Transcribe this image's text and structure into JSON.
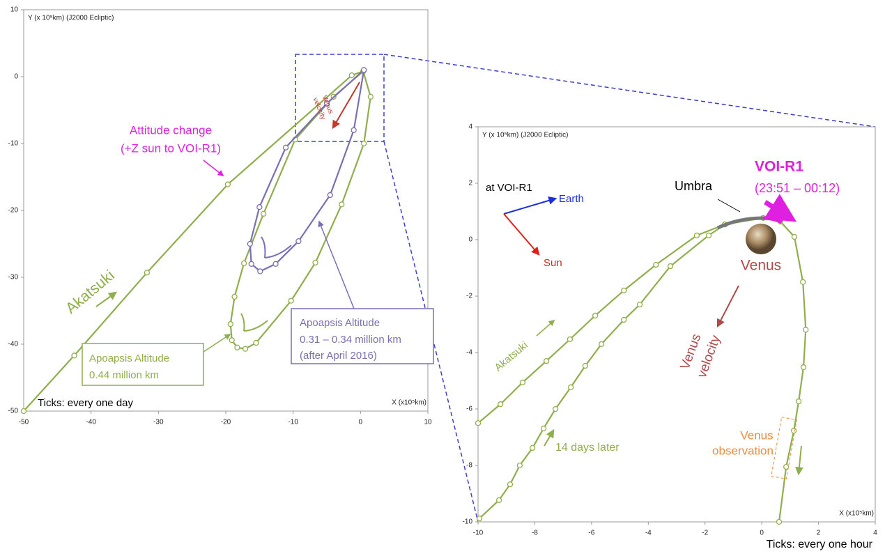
{
  "chart_data": [
    {
      "type": "trajectory",
      "y_label": "Y (x 10⁵km) (J2000 Ecliptic)",
      "x_label": "X (x10⁵km)",
      "xlim": [
        -50,
        10
      ],
      "ylim": [
        -50,
        10
      ],
      "xticks": [
        -50,
        -40,
        -30,
        -20,
        -10,
        0,
        10
      ],
      "yticks": [
        10,
        0,
        -10,
        -20,
        -30,
        -40,
        -50
      ],
      "series": [
        {
          "color": "#8fae4c",
          "x": [
            -50,
            -42.5,
            -31.7,
            -19.7,
            -1.3,
            0.4,
            1.5,
            0.5,
            -2.8,
            -6.7,
            -10.3,
            -15.5,
            -17.1,
            -18.3,
            -19.1,
            -19.3,
            -18.7,
            -17.3,
            -14.4,
            -9.7,
            -4,
            0.4
          ],
          "y": [
            -50,
            -41.7,
            -29.3,
            -16.1,
            0.2,
            0.8,
            -3,
            -10,
            -19.1,
            -27.8,
            -33.5,
            -39.8,
            -40.7,
            -40.5,
            -39.4,
            -37,
            -32.9,
            -27.9,
            -20.5,
            -9.4,
            -3,
            0.8
          ]
        },
        {
          "color": "#7a6fb4",
          "x": [
            0.5,
            -5,
            -11.1,
            -15,
            -16.4,
            -16.2,
            -14.9,
            -12.6,
            -9.2,
            -4.5,
            -1,
            0.5
          ],
          "y": [
            1,
            -4,
            -10.6,
            -19.5,
            -25,
            -28,
            -29.1,
            -28,
            -24.6,
            -17.7,
            -8,
            1
          ]
        }
      ],
      "annotations": [
        "Attitude change",
        "(+Z sun to VOI-R1)",
        "Venus",
        "velocity",
        "Akatsuki",
        "Apoapsis Altitude",
        "0.44 million km",
        "Apoapsis Altitude",
        "0.31 – 0.34 million km",
        "(after April 2016)",
        "Ticks: every one day"
      ]
    },
    {
      "type": "trajectory",
      "y_label": "Y (x 10⁵km) (J2000 Ecliptic)",
      "x_label": "X (x10⁵km)",
      "xlim": [
        -10,
        4
      ],
      "ylim": [
        -10,
        4
      ],
      "xticks": [
        -10,
        -8,
        -6,
        -4,
        -2,
        0,
        2,
        4
      ],
      "yticks": [
        4,
        2,
        0,
        -2,
        -4,
        -6,
        -8,
        -10
      ],
      "series": [
        {
          "color": "#8fae4c",
          "x": [
            -10,
            -9.21,
            -8.43,
            -7.59,
            -6.76,
            -5.87,
            -4.86,
            -3.73,
            -2.29,
            -1.3,
            0.05,
            0.66,
            1.15,
            1.45,
            1.55,
            1.47,
            1.3,
            1.13,
            0.86,
            0.61
          ],
          "y": [
            -6.5,
            -5.83,
            -5.06,
            -4.3,
            -3.53,
            -2.69,
            -1.8,
            -0.89,
            0.15,
            0.54,
            0.77,
            0.64,
            0.1,
            -1.5,
            -3.19,
            -4.52,
            -5.73,
            -6.77,
            -8.05,
            -10
          ]
        },
        {
          "color": "#8fae4c",
          "x": [
            -9.95,
            -9.26,
            -8.87,
            -8.53,
            -8.08,
            -7.69,
            -7.27,
            -6.73,
            -6.22,
            -5.65,
            -4.86,
            -4.3,
            -3.22,
            -1.87,
            -1.3
          ],
          "y": [
            -9.88,
            -9.23,
            -8.67,
            -8,
            -7.38,
            -6.69,
            -6,
            -5.23,
            -4.47,
            -3.7,
            -2.84,
            -2.3,
            -0.94,
            0.15,
            0.54
          ]
        }
      ],
      "annotations": [
        "at VOI-R1",
        "Earth",
        "Sun",
        "Umbra",
        "VOI-R1",
        "(23:51 – 00:12)",
        "Venus",
        "Venus",
        "velocity",
        "Akatsuki",
        "14 days later",
        "Venus",
        "observation",
        "Ticks: every one hour"
      ]
    }
  ]
}
